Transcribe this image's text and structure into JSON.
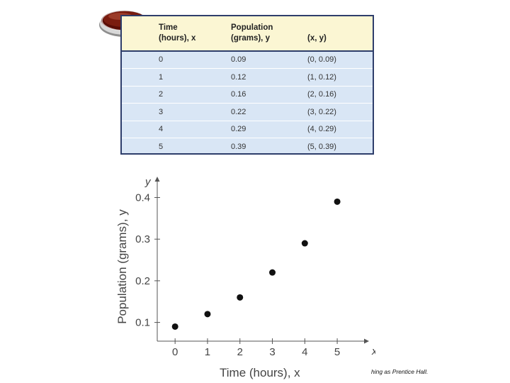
{
  "table": {
    "headers": {
      "time_line1": "Time",
      "time_line2": "(hours), x",
      "pop_line1": "Population",
      "pop_line2": "(grams), y",
      "pair": "(x, y)"
    },
    "rows": [
      {
        "time": "0",
        "population": "0.09",
        "pair": "(0, 0.09)"
      },
      {
        "time": "1",
        "population": "0.12",
        "pair": "(1, 0.12)"
      },
      {
        "time": "2",
        "population": "0.16",
        "pair": "(2, 0.16)"
      },
      {
        "time": "3",
        "population": "0.22",
        "pair": "(3, 0.22)"
      },
      {
        "time": "4",
        "population": "0.29",
        "pair": "(4, 0.29)"
      },
      {
        "time": "5",
        "population": "0.39",
        "pair": "(5, 0.39)"
      }
    ]
  },
  "chart_data": {
    "type": "scatter",
    "title": "",
    "xlabel": "Time (hours), x",
    "ylabel": "Population (grams), y",
    "x_axis_letter": "x",
    "y_axis_letter": "y",
    "x": [
      0,
      1,
      2,
      3,
      4,
      5
    ],
    "y": [
      0.09,
      0.12,
      0.16,
      0.22,
      0.29,
      0.39
    ],
    "xticks": [
      "0",
      "1",
      "2",
      "3",
      "4",
      "5"
    ],
    "yticks": [
      "0.1",
      "0.2",
      "0.3",
      "0.4"
    ],
    "xlim": [
      -0.55,
      5.85
    ],
    "ylim": [
      0.055,
      0.44
    ],
    "grid": false
  },
  "credit": "hing as Prentice Hall.",
  "colors": {
    "table_border": "#2e3e6b",
    "header_bg": "#fbf6d3",
    "row_bg": "#d9e6f5",
    "marker": "#111111"
  }
}
